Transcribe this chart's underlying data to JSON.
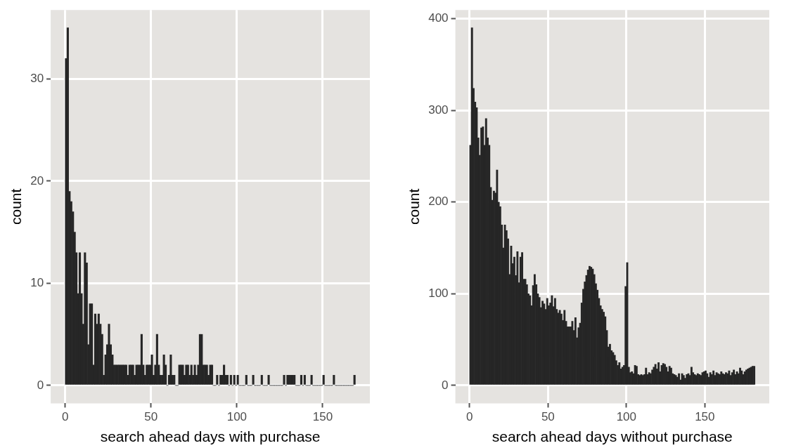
{
  "chart_data": [
    {
      "type": "histogram",
      "xlabel": "search ahead days with purchase",
      "ylabel": "count",
      "color": "#262626",
      "grid": true,
      "xlim": [
        -8.45,
        177.45
      ],
      "xticks": [
        0,
        50,
        100,
        150
      ],
      "ylim": [
        -1.75,
        36.75
      ],
      "yticks": [
        0,
        10,
        20,
        30
      ],
      "bins": [
        0,
        1,
        2,
        3,
        4,
        5,
        6,
        7,
        8,
        9,
        10,
        11,
        12,
        13,
        14,
        15,
        16,
        17,
        18,
        19,
        20,
        21,
        22,
        23,
        24,
        25,
        26,
        27,
        28,
        29,
        30,
        31,
        32,
        33,
        34,
        35,
        36,
        37,
        38,
        39,
        40,
        41,
        42,
        43,
        44,
        45,
        46,
        47,
        48,
        49,
        50,
        51,
        52,
        53,
        54,
        55,
        56,
        57,
        58,
        59,
        60,
        61,
        62,
        63,
        64,
        65,
        66,
        67,
        68,
        69,
        70,
        71,
        72,
        73,
        74,
        75,
        76,
        77,
        78,
        79,
        80,
        81,
        82,
        83,
        84,
        85,
        86,
        87,
        88,
        89,
        90,
        91,
        92,
        93,
        94,
        95,
        96,
        97,
        98,
        99,
        100,
        101,
        102,
        103,
        104,
        105,
        106,
        107,
        108,
        109,
        110,
        111,
        112,
        113,
        114,
        115,
        116,
        117,
        118,
        119,
        120,
        121,
        122,
        123,
        124,
        125,
        126,
        127,
        128,
        129,
        130,
        131,
        132,
        133,
        134,
        135,
        136,
        137,
        138,
        139,
        140,
        141,
        142,
        143,
        144,
        145,
        146,
        147,
        148,
        149,
        150,
        151,
        152,
        153,
        154,
        155,
        156,
        157,
        158,
        159,
        160,
        161,
        162,
        163,
        164,
        165,
        166,
        167,
        168,
        169
      ],
      "values": [
        32,
        35,
        19,
        18,
        17,
        15,
        13,
        9,
        13,
        9,
        6,
        13,
        12,
        4,
        8,
        8,
        2,
        7,
        6,
        7,
        6,
        5,
        1,
        3,
        4,
        6,
        4,
        3,
        2,
        2,
        2,
        2,
        2,
        2,
        2,
        2,
        1,
        2,
        2,
        2,
        1,
        2,
        2,
        2,
        5,
        2,
        1,
        2,
        2,
        2,
        3,
        1,
        2,
        5,
        2,
        1,
        1,
        3,
        2,
        0,
        1,
        3,
        1,
        1,
        0,
        0,
        2,
        2,
        2,
        1,
        2,
        2,
        1,
        2,
        1,
        2,
        1,
        2,
        5,
        5,
        2,
        2,
        2,
        1,
        2,
        2,
        0,
        0,
        1,
        0,
        1,
        1,
        2,
        1,
        1,
        0,
        1,
        0,
        1,
        0,
        1,
        0,
        0,
        0,
        0,
        1,
        0,
        0,
        0,
        1,
        0,
        0,
        0,
        0,
        1,
        0,
        0,
        0,
        1,
        0,
        0,
        0,
        0,
        0,
        0,
        0,
        0,
        1,
        0,
        1,
        1,
        1,
        1,
        1,
        0,
        0,
        0,
        1,
        0,
        1,
        0,
        0,
        0,
        1,
        0,
        0,
        0,
        0,
        0,
        0,
        1,
        0,
        0,
        0,
        0,
        0,
        1,
        0,
        0,
        0,
        0,
        0,
        0,
        0,
        0,
        0,
        0,
        0,
        1
      ]
    },
    {
      "type": "histogram",
      "xlabel": "search ahead days without purchase",
      "ylabel": "count",
      "color": "#262626",
      "grid": true,
      "xlim": [
        -9.1,
        191.1
      ],
      "xticks": [
        0,
        50,
        100,
        150
      ],
      "ylim": [
        -19.5,
        409.5
      ],
      "yticks": [
        0,
        100,
        200,
        300,
        400
      ],
      "bins": [
        0,
        1,
        2,
        3,
        4,
        5,
        6,
        7,
        8,
        9,
        10,
        11,
        12,
        13,
        14,
        15,
        16,
        17,
        18,
        19,
        20,
        21,
        22,
        23,
        24,
        25,
        26,
        27,
        28,
        29,
        30,
        31,
        32,
        33,
        34,
        35,
        36,
        37,
        38,
        39,
        40,
        41,
        42,
        43,
        44,
        45,
        46,
        47,
        48,
        49,
        50,
        51,
        52,
        53,
        54,
        55,
        56,
        57,
        58,
        59,
        60,
        61,
        62,
        63,
        64,
        65,
        66,
        67,
        68,
        69,
        70,
        71,
        72,
        73,
        74,
        75,
        76,
        77,
        78,
        79,
        80,
        81,
        82,
        83,
        84,
        85,
        86,
        87,
        88,
        89,
        90,
        91,
        92,
        93,
        94,
        95,
        96,
        97,
        98,
        99,
        100,
        101,
        102,
        103,
        104,
        105,
        106,
        107,
        108,
        109,
        110,
        111,
        112,
        113,
        114,
        115,
        116,
        117,
        118,
        119,
        120,
        121,
        122,
        123,
        124,
        125,
        126,
        127,
        128,
        129,
        130,
        131,
        132,
        133,
        134,
        135,
        136,
        137,
        138,
        139,
        140,
        141,
        142,
        143,
        144,
        145,
        146,
        147,
        148,
        149,
        150,
        151,
        152,
        153,
        154,
        155,
        156,
        157,
        158,
        159,
        160,
        161,
        162,
        163,
        164,
        165,
        166,
        167,
        168,
        169,
        170,
        171,
        172,
        173,
        174,
        175,
        176,
        177,
        178,
        179,
        180,
        181,
        182
      ],
      "values": [
        262,
        390,
        324,
        309,
        303,
        270,
        251,
        281,
        282,
        262,
        291,
        270,
        262,
        216,
        202,
        212,
        210,
        235,
        200,
        195,
        175,
        150,
        175,
        169,
        160,
        121,
        152,
        133,
        140,
        120,
        146,
        112,
        140,
        145,
        116,
        116,
        110,
        100,
        98,
        87,
        109,
        121,
        110,
        100,
        96,
        85,
        92,
        89,
        83,
        95,
        87,
        90,
        98,
        86,
        95,
        83,
        79,
        82,
        78,
        71,
        82,
        70,
        64,
        64,
        64,
        70,
        60,
        74,
        52,
        63,
        68,
        90,
        105,
        113,
        120,
        126,
        130,
        129,
        127,
        121,
        111,
        104,
        95,
        87,
        83,
        80,
        75,
        60,
        42,
        45,
        38,
        36,
        33,
        27,
        22,
        25,
        18,
        20,
        22,
        108,
        134,
        20,
        14,
        15,
        13,
        22,
        21,
        12,
        11,
        12,
        11,
        12,
        19,
        12,
        14,
        13,
        17,
        20,
        23,
        18,
        25,
        15,
        22,
        24,
        23,
        20,
        15,
        21,
        19,
        13,
        12,
        11,
        9,
        13,
        6,
        13,
        11,
        8,
        12,
        13,
        11,
        20,
        14,
        12,
        11,
        13,
        12,
        11,
        14,
        15,
        16,
        13,
        9,
        14,
        12,
        16,
        11,
        14,
        13,
        12,
        15,
        13,
        12,
        14,
        13,
        16,
        11,
        14,
        17,
        12,
        15,
        13,
        19,
        16,
        12,
        15,
        17,
        18,
        19,
        20,
        21,
        21
      ]
    }
  ]
}
